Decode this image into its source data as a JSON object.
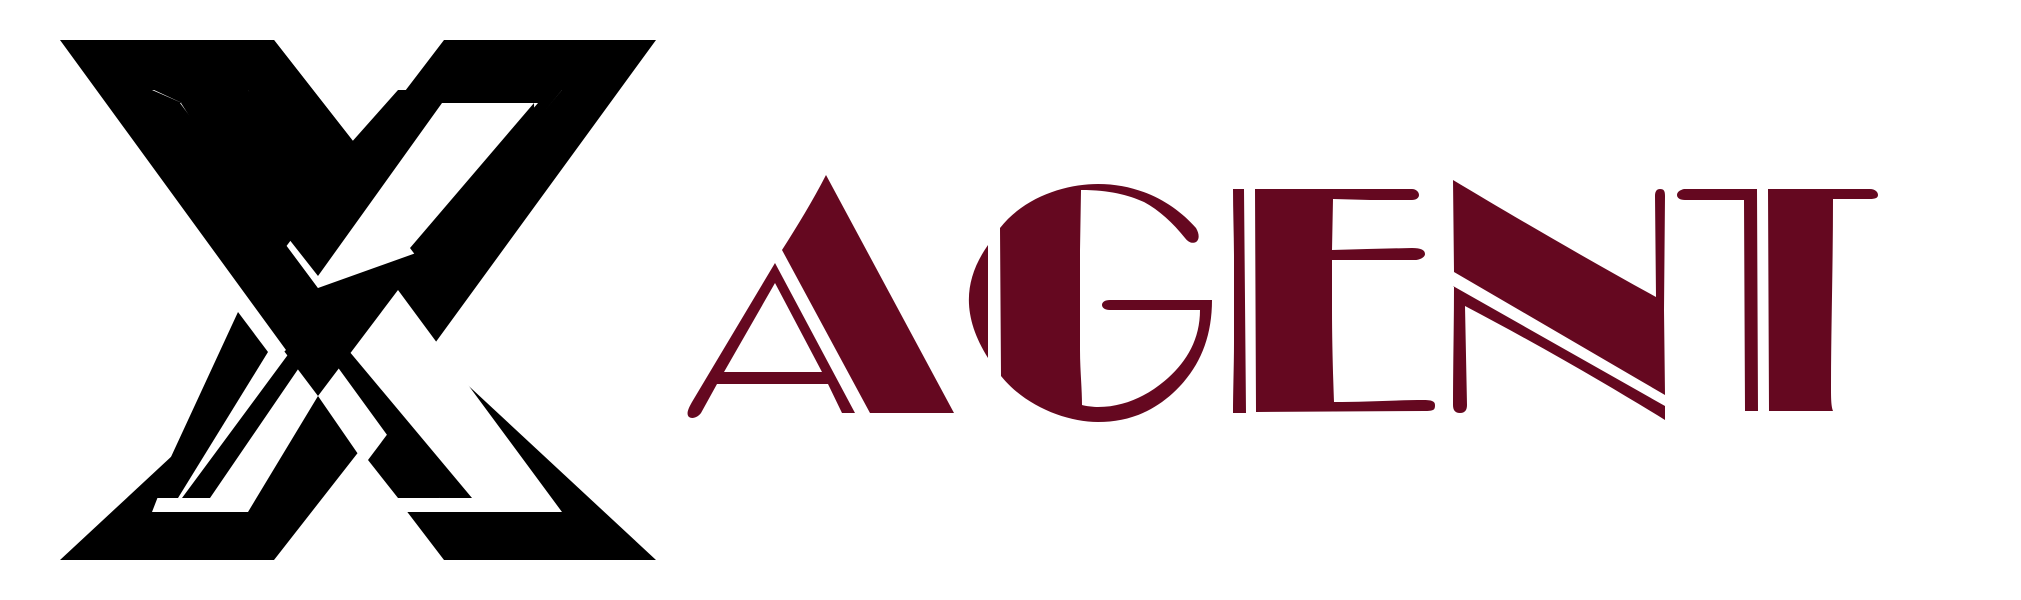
{
  "logo": {
    "wordmark": "AGENT",
    "emblem": "x-emblem",
    "colors": {
      "emblem": "#000000",
      "emblem_inner": "#ffffff",
      "wordmark": "#650820",
      "background": "#ffffff"
    }
  }
}
